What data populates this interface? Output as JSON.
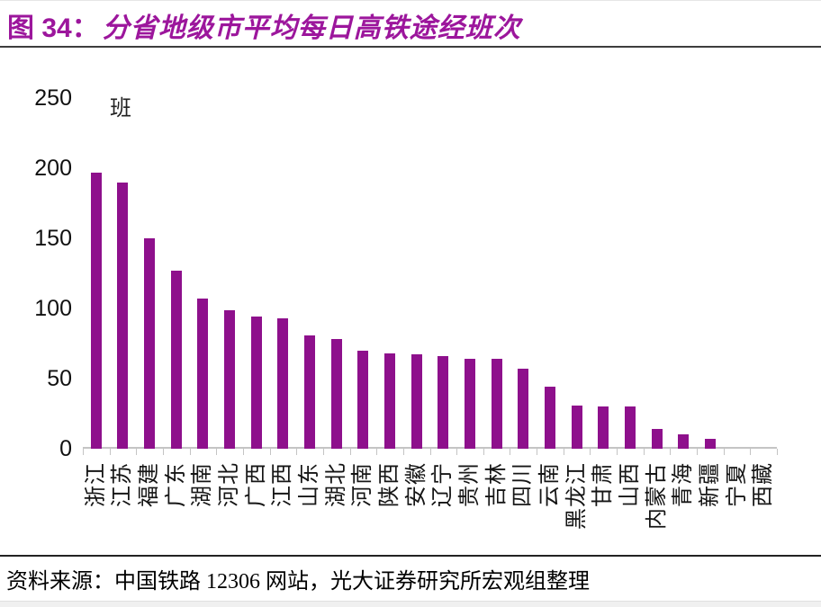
{
  "title": {
    "prefix": "图 34：",
    "text": "分省地级市平均每日高铁途经班次"
  },
  "footer": {
    "source_text": "资料来源：中国铁路 12306 网站，光大证券研究所宏观组整理"
  },
  "colors": {
    "bar": "#8E108C",
    "title": "#9C169C",
    "axis": "#C4C4C4",
    "text": "#111111"
  },
  "chart_data": {
    "type": "bar",
    "title": "分省地级市平均每日高铁途经班次",
    "unit_label": "班",
    "ylabel": "班",
    "xlabel": "",
    "ylim": [
      0,
      250
    ],
    "yticks": [
      0,
      50,
      100,
      150,
      200,
      250
    ],
    "grid": false,
    "legend": null,
    "bar_color": "#8E108C",
    "categories": [
      "浙江",
      "江苏",
      "福建",
      "广东",
      "湖南",
      "河北",
      "广西",
      "江西",
      "山东",
      "湖北",
      "河南",
      "陕西",
      "安徽",
      "辽宁",
      "贵州",
      "吉林",
      "四川",
      "云南",
      "黑龙江",
      "甘肃",
      "山西",
      "内蒙古",
      "青海",
      "新疆",
      "宁夏",
      "西藏"
    ],
    "values": [
      197,
      190,
      150,
      127,
      107,
      99,
      94,
      93,
      81,
      78,
      70,
      68,
      67,
      66,
      64,
      64,
      57,
      44,
      31,
      30,
      30,
      14,
      10,
      7,
      0,
      0
    ]
  }
}
